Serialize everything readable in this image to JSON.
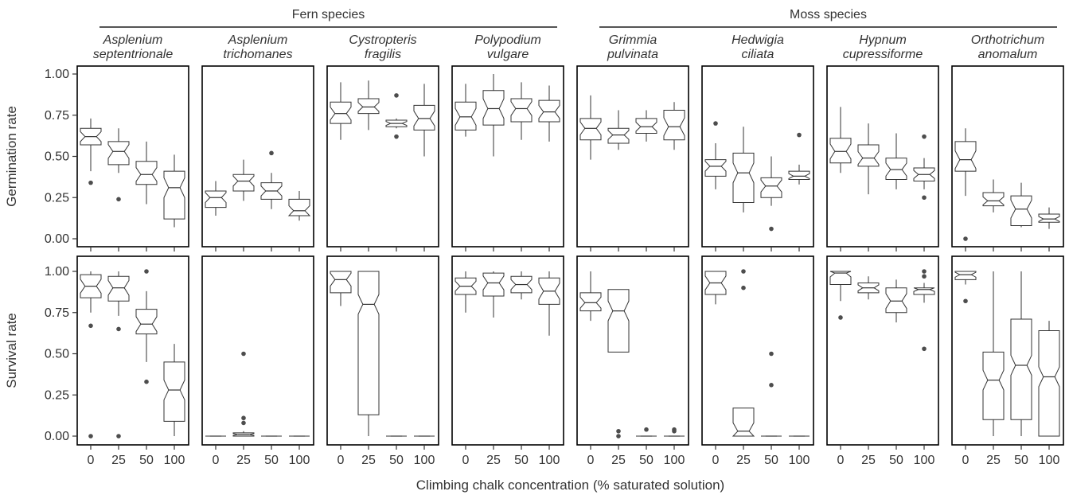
{
  "chart_data": {
    "type": "boxplot",
    "xlabel": "Climbing chalk concentration (% saturated solution)",
    "rows": [
      {
        "ylabel": "Germination rate",
        "ylim": [
          0,
          1
        ],
        "yticks": [
          "0.00",
          "0.25",
          "0.50",
          "0.75",
          "1.00"
        ]
      },
      {
        "ylabel": "Survival rate",
        "ylim": [
          0,
          1
        ],
        "yticks": [
          "0.00",
          "0.25",
          "0.50",
          "0.75",
          "1.00"
        ]
      }
    ],
    "categories": [
      "0",
      "25",
      "50",
      "100"
    ],
    "groups": [
      {
        "label": "Fern species",
        "first": 0,
        "last": 3
      },
      {
        "label": "Moss species",
        "first": 4,
        "last": 7
      }
    ],
    "panels": [
      {
        "species": [
          "Asplenium",
          "septentrionale"
        ],
        "germination": [
          {
            "lo": 0.41,
            "q1": 0.57,
            "med": 0.62,
            "q3": 0.67,
            "hi": 0.73,
            "out": [
              0.34
            ]
          },
          {
            "lo": 0.4,
            "q1": 0.45,
            "med": 0.53,
            "q3": 0.59,
            "hi": 0.67,
            "out": [
              0.24
            ]
          },
          {
            "lo": 0.21,
            "q1": 0.33,
            "med": 0.39,
            "q3": 0.47,
            "hi": 0.59,
            "out": []
          },
          {
            "lo": 0.07,
            "q1": 0.12,
            "med": 0.31,
            "q3": 0.41,
            "hi": 0.51,
            "out": []
          }
        ],
        "survival": [
          {
            "lo": 0.75,
            "q1": 0.84,
            "med": 0.91,
            "q3": 0.98,
            "hi": 1.0,
            "out": [
              0.67,
              0.0
            ]
          },
          {
            "lo": 0.73,
            "q1": 0.82,
            "med": 0.9,
            "q3": 0.97,
            "hi": 1.0,
            "out": [
              0.65,
              0.0
            ]
          },
          {
            "lo": 0.45,
            "q1": 0.62,
            "med": 0.68,
            "q3": 0.77,
            "hi": 0.88,
            "out": [
              1.0,
              0.33
            ]
          },
          {
            "lo": 0.0,
            "q1": 0.09,
            "med": 0.28,
            "q3": 0.45,
            "hi": 0.56,
            "out": []
          }
        ]
      },
      {
        "species": [
          "Asplenium",
          "trichomanes"
        ],
        "germination": [
          {
            "lo": 0.14,
            "q1": 0.19,
            "med": 0.25,
            "q3": 0.29,
            "hi": 0.35,
            "out": []
          },
          {
            "lo": 0.23,
            "q1": 0.29,
            "med": 0.35,
            "q3": 0.39,
            "hi": 0.48,
            "out": []
          },
          {
            "lo": 0.18,
            "q1": 0.24,
            "med": 0.29,
            "q3": 0.34,
            "hi": 0.4,
            "out": [
              0.52
            ]
          },
          {
            "lo": 0.11,
            "q1": 0.14,
            "med": 0.17,
            "q3": 0.24,
            "hi": 0.29,
            "out": []
          }
        ],
        "survival": [
          {
            "lo": 0.0,
            "q1": 0.0,
            "med": 0.0,
            "q3": 0.0,
            "hi": 0.0,
            "out": []
          },
          {
            "lo": 0.0,
            "q1": 0.0,
            "med": 0.01,
            "q3": 0.02,
            "hi": 0.03,
            "out": [
              0.5,
              0.11,
              0.08
            ]
          },
          {
            "lo": 0.0,
            "q1": 0.0,
            "med": 0.0,
            "q3": 0.0,
            "hi": 0.0,
            "out": []
          },
          {
            "lo": 0.0,
            "q1": 0.0,
            "med": 0.0,
            "q3": 0.0,
            "hi": 0.0,
            "out": []
          }
        ]
      },
      {
        "species": [
          "Cystropteris",
          "fragilis"
        ],
        "germination": [
          {
            "lo": 0.6,
            "q1": 0.7,
            "med": 0.76,
            "q3": 0.83,
            "hi": 0.95,
            "out": []
          },
          {
            "lo": 0.66,
            "q1": 0.76,
            "med": 0.8,
            "q3": 0.85,
            "hi": 0.96,
            "out": []
          },
          {
            "lo": 0.67,
            "q1": 0.68,
            "med": 0.7,
            "q3": 0.72,
            "hi": 0.73,
            "out": [
              0.87,
              0.62
            ]
          },
          {
            "lo": 0.5,
            "q1": 0.66,
            "med": 0.73,
            "q3": 0.81,
            "hi": 0.94,
            "out": []
          }
        ],
        "survival": [
          {
            "lo": 0.79,
            "q1": 0.87,
            "med": 0.95,
            "q3": 1.0,
            "hi": 1.0,
            "out": []
          },
          {
            "lo": 0.0,
            "q1": 0.13,
            "med": 0.8,
            "q3": 1.0,
            "hi": 1.0,
            "out": []
          },
          {
            "lo": 0.0,
            "q1": 0.0,
            "med": 0.0,
            "q3": 0.0,
            "hi": 0.0,
            "out": []
          },
          {
            "lo": 0.0,
            "q1": 0.0,
            "med": 0.0,
            "q3": 0.0,
            "hi": 0.0,
            "out": []
          }
        ]
      },
      {
        "species": [
          "Polypodium",
          "vulgare"
        ],
        "germination": [
          {
            "lo": 0.62,
            "q1": 0.66,
            "med": 0.74,
            "q3": 0.83,
            "hi": 0.94,
            "out": []
          },
          {
            "lo": 0.5,
            "q1": 0.69,
            "med": 0.79,
            "q3": 0.9,
            "hi": 1.0,
            "out": []
          },
          {
            "lo": 0.6,
            "q1": 0.71,
            "med": 0.79,
            "q3": 0.85,
            "hi": 0.95,
            "out": []
          },
          {
            "lo": 0.59,
            "q1": 0.71,
            "med": 0.77,
            "q3": 0.84,
            "hi": 0.93,
            "out": []
          }
        ],
        "survival": [
          {
            "lo": 0.75,
            "q1": 0.86,
            "med": 0.91,
            "q3": 0.96,
            "hi": 1.0,
            "out": []
          },
          {
            "lo": 0.72,
            "q1": 0.85,
            "med": 0.93,
            "q3": 0.99,
            "hi": 1.0,
            "out": []
          },
          {
            "lo": 0.83,
            "q1": 0.87,
            "med": 0.92,
            "q3": 0.97,
            "hi": 1.0,
            "out": []
          },
          {
            "lo": 0.61,
            "q1": 0.8,
            "med": 0.88,
            "q3": 0.96,
            "hi": 1.0,
            "out": []
          }
        ]
      },
      {
        "species": [
          "Grimmia",
          "pulvinata"
        ],
        "germination": [
          {
            "lo": 0.48,
            "q1": 0.6,
            "med": 0.67,
            "q3": 0.73,
            "hi": 0.87,
            "out": []
          },
          {
            "lo": 0.54,
            "q1": 0.58,
            "med": 0.63,
            "q3": 0.67,
            "hi": 0.78,
            "out": []
          },
          {
            "lo": 0.59,
            "q1": 0.64,
            "med": 0.68,
            "q3": 0.73,
            "hi": 0.78,
            "out": []
          },
          {
            "lo": 0.54,
            "q1": 0.6,
            "med": 0.68,
            "q3": 0.78,
            "hi": 0.83,
            "out": []
          }
        ],
        "survival": [
          {
            "lo": 0.7,
            "q1": 0.76,
            "med": 0.81,
            "q3": 0.87,
            "hi": 1.0,
            "out": []
          },
          {
            "lo": 0.51,
            "q1": 0.51,
            "med": 0.76,
            "q3": 0.89,
            "hi": 0.89,
            "out": [
              0.03,
              0.0
            ]
          },
          {
            "lo": 0.0,
            "q1": 0.0,
            "med": 0.0,
            "q3": 0.0,
            "hi": 0.0,
            "out": [
              0.04
            ]
          },
          {
            "lo": 0.0,
            "q1": 0.0,
            "med": 0.0,
            "q3": 0.0,
            "hi": 0.0,
            "out": [
              0.04,
              0.03
            ]
          }
        ]
      },
      {
        "species": [
          "Hedwigia",
          "ciliata"
        ],
        "germination": [
          {
            "lo": 0.3,
            "q1": 0.38,
            "med": 0.44,
            "q3": 0.48,
            "hi": 0.58,
            "out": [
              0.7
            ]
          },
          {
            "lo": 0.16,
            "q1": 0.22,
            "med": 0.4,
            "q3": 0.52,
            "hi": 0.68,
            "out": []
          },
          {
            "lo": 0.2,
            "q1": 0.25,
            "med": 0.32,
            "q3": 0.37,
            "hi": 0.5,
            "out": [
              0.06
            ]
          },
          {
            "lo": 0.33,
            "q1": 0.36,
            "med": 0.38,
            "q3": 0.41,
            "hi": 0.45,
            "out": [
              0.63
            ]
          }
        ],
        "survival": [
          {
            "lo": 0.8,
            "q1": 0.86,
            "med": 0.93,
            "q3": 1.0,
            "hi": 1.0,
            "out": []
          },
          {
            "lo": 0.0,
            "q1": 0.0,
            "med": 0.03,
            "q3": 0.17,
            "hi": 0.17,
            "out": [
              1.0,
              0.9
            ]
          },
          {
            "lo": 0.0,
            "q1": 0.0,
            "med": 0.0,
            "q3": 0.0,
            "hi": 0.0,
            "out": [
              0.5,
              0.31
            ]
          },
          {
            "lo": 0.0,
            "q1": 0.0,
            "med": 0.0,
            "q3": 0.0,
            "hi": 0.0,
            "out": []
          }
        ]
      },
      {
        "species": [
          "Hypnum",
          "cupressiforme"
        ],
        "germination": [
          {
            "lo": 0.4,
            "q1": 0.46,
            "med": 0.53,
            "q3": 0.61,
            "hi": 0.8,
            "out": []
          },
          {
            "lo": 0.27,
            "q1": 0.44,
            "med": 0.49,
            "q3": 0.57,
            "hi": 0.7,
            "out": []
          },
          {
            "lo": 0.3,
            "q1": 0.36,
            "med": 0.42,
            "q3": 0.49,
            "hi": 0.64,
            "out": []
          },
          {
            "lo": 0.3,
            "q1": 0.35,
            "med": 0.39,
            "q3": 0.43,
            "hi": 0.49,
            "out": [
              0.62,
              0.25
            ]
          }
        ],
        "survival": [
          {
            "lo": 0.82,
            "q1": 0.92,
            "med": 0.99,
            "q3": 1.0,
            "hi": 1.0,
            "out": [
              0.72
            ]
          },
          {
            "lo": 0.83,
            "q1": 0.87,
            "med": 0.9,
            "q3": 0.93,
            "hi": 0.97,
            "out": []
          },
          {
            "lo": 0.69,
            "q1": 0.75,
            "med": 0.82,
            "q3": 0.9,
            "hi": 0.95,
            "out": []
          },
          {
            "lo": 0.81,
            "q1": 0.86,
            "med": 0.89,
            "q3": 0.9,
            "hi": 0.93,
            "out": [
              1.0,
              0.97,
              0.53
            ]
          }
        ]
      },
      {
        "species": [
          "Orthotrichum",
          "anomalum"
        ],
        "germination": [
          {
            "lo": 0.26,
            "q1": 0.41,
            "med": 0.48,
            "q3": 0.59,
            "hi": 0.67,
            "out": [
              0.0
            ]
          },
          {
            "lo": 0.16,
            "q1": 0.2,
            "med": 0.23,
            "q3": 0.28,
            "hi": 0.36,
            "out": []
          },
          {
            "lo": 0.07,
            "q1": 0.08,
            "med": 0.18,
            "q3": 0.26,
            "hi": 0.34,
            "out": []
          },
          {
            "lo": 0.06,
            "q1": 0.1,
            "med": 0.12,
            "q3": 0.15,
            "hi": 0.19,
            "out": []
          }
        ],
        "survival": [
          {
            "lo": 0.92,
            "q1": 0.95,
            "med": 0.98,
            "q3": 1.0,
            "hi": 1.0,
            "out": [
              0.82
            ]
          },
          {
            "lo": 0.0,
            "q1": 0.1,
            "med": 0.34,
            "q3": 0.51,
            "hi": 1.0,
            "out": []
          },
          {
            "lo": 0.0,
            "q1": 0.1,
            "med": 0.43,
            "q3": 0.71,
            "hi": 1.0,
            "out": []
          },
          {
            "lo": 0.0,
            "q1": 0.0,
            "med": 0.36,
            "q3": 0.64,
            "hi": 0.7,
            "out": []
          }
        ]
      }
    ]
  }
}
